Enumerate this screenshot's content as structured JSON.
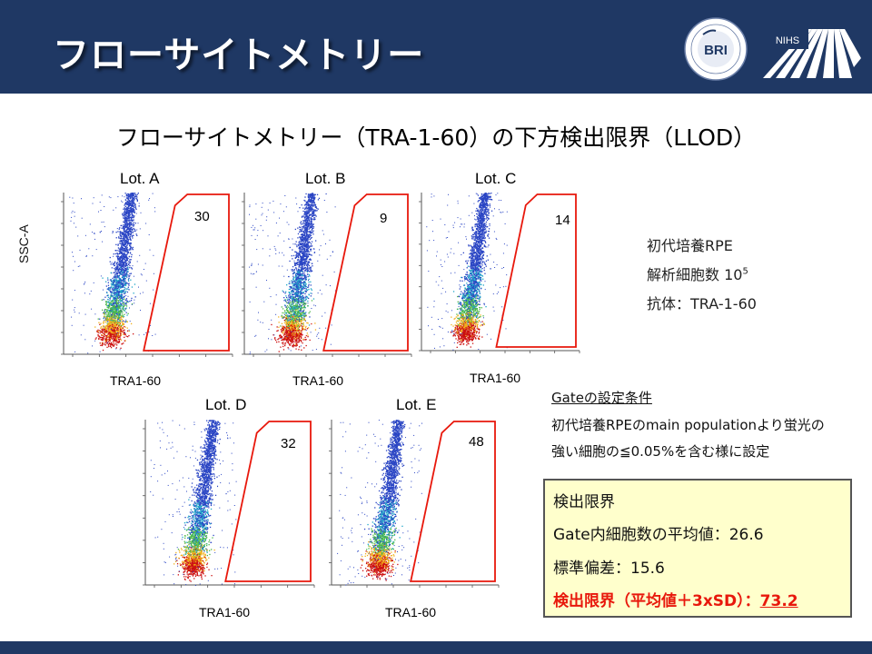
{
  "header": {
    "title": "フローサイトメトリー",
    "logos": [
      {
        "name": "bri-logo",
        "text": "BRI"
      },
      {
        "name": "nihs-logo",
        "text": "NIHS"
      }
    ]
  },
  "subtitle": "フローサイトメトリー（TRA-1-60）の下方検出限界（LLOD）",
  "plots": {
    "y_axis_label": "SSC-A",
    "x_axis_label": "TRA1-60",
    "panels": [
      {
        "title": "Lot. A",
        "count": "30"
      },
      {
        "title": "Lot. B",
        "count": "9"
      },
      {
        "title": "Lot. C",
        "count": "14"
      },
      {
        "title": "Lot. D",
        "count": "32"
      },
      {
        "title": "Lot. E",
        "count": "48"
      }
    ]
  },
  "info": {
    "cells": "初代培養RPE",
    "analyzed_prefix": "解析細胞数 10",
    "analyzed_exp": "5",
    "antibody": "抗体：TRA-1-60"
  },
  "gate": {
    "heading": "Gateの設定条件",
    "line1": "初代培養RPEのmain populationより蛍光の",
    "line2": "強い細胞の≦0.05%を含む様に設定"
  },
  "result": {
    "heading": "検出限界",
    "mean_label": "Gate内細胞数の平均値：",
    "mean_value": "26.6",
    "sd_label": "標準偏差：",
    "sd_value": "15.6",
    "llod_label": "検出限界（平均値＋3xSD）：",
    "llod_value": "73.2"
  },
  "colors": {
    "header_bg": "#1f3864",
    "gate_red": "#e8180c",
    "result_box_bg": "#ffffcc"
  }
}
